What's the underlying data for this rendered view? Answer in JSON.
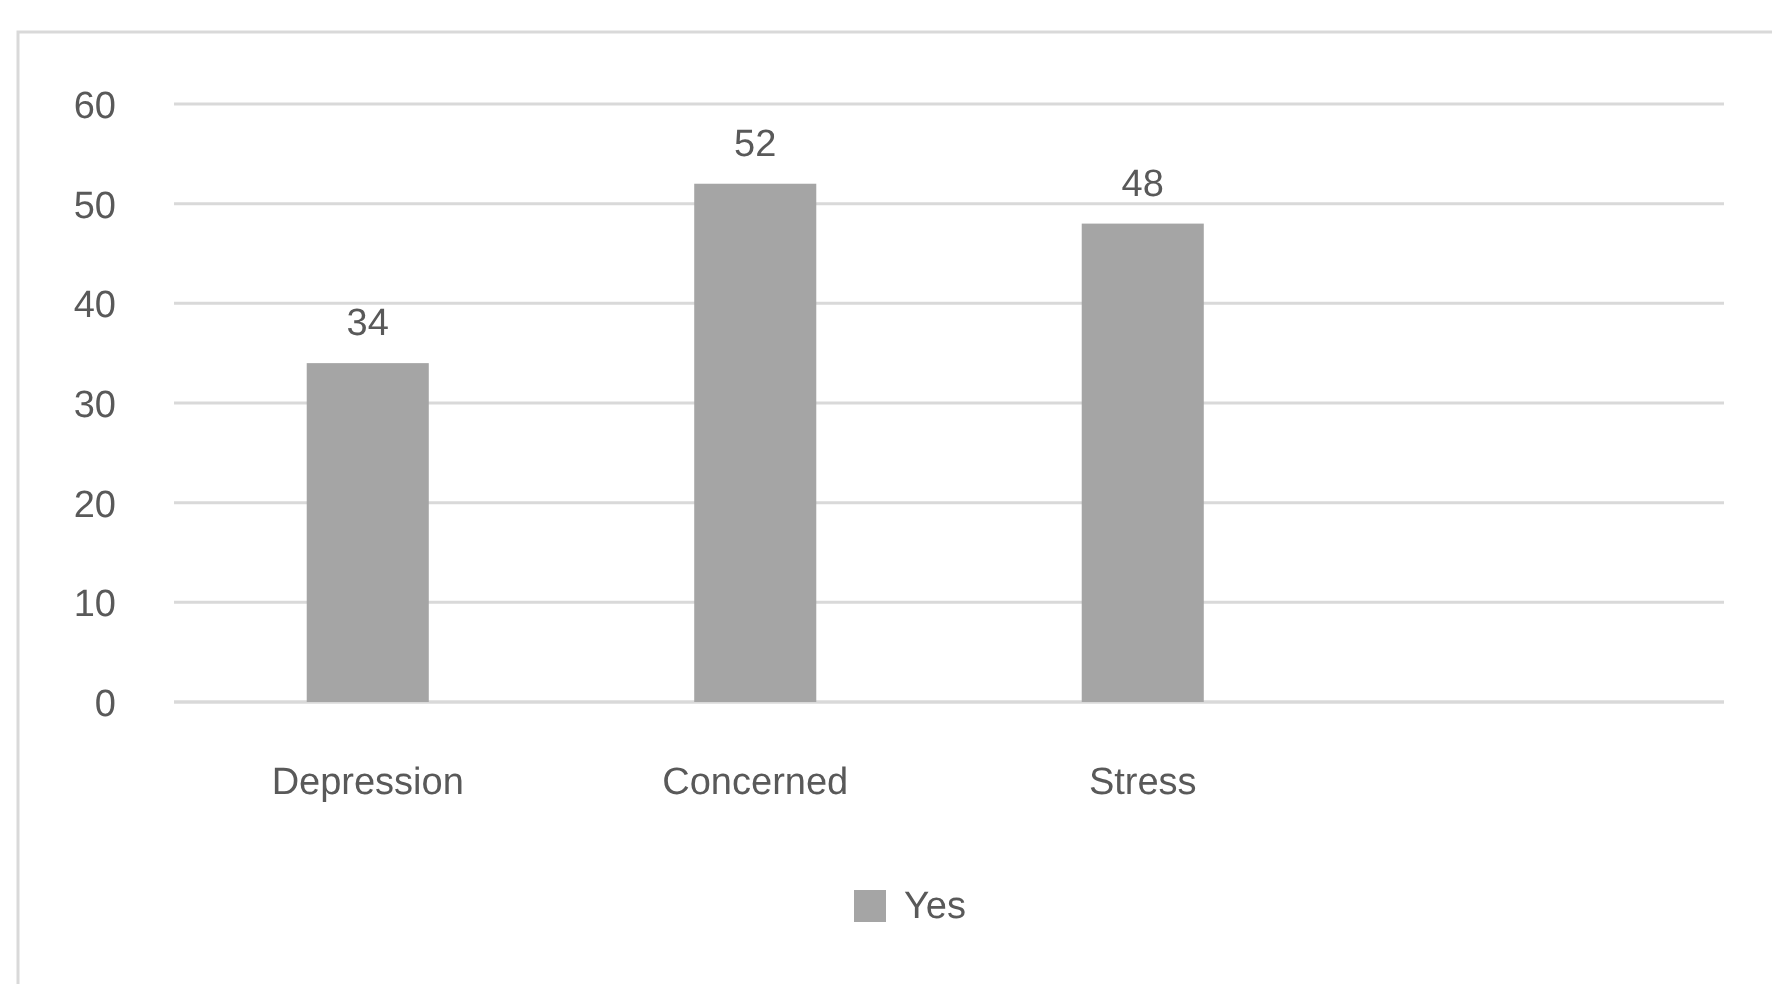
{
  "chart_data": {
    "type": "bar",
    "categories": [
      "Depression",
      "Concerned",
      "Stress",
      null
    ],
    "series": [
      {
        "name": "Yes",
        "color": "#a5a5a5",
        "values": [
          34,
          52,
          48,
          null
        ]
      }
    ],
    "ylim": [
      0,
      60
    ],
    "yticks": [
      0,
      10,
      20,
      30,
      40,
      50,
      60
    ],
    "grid": "y",
    "legend": "bottom",
    "data_labels": true
  }
}
